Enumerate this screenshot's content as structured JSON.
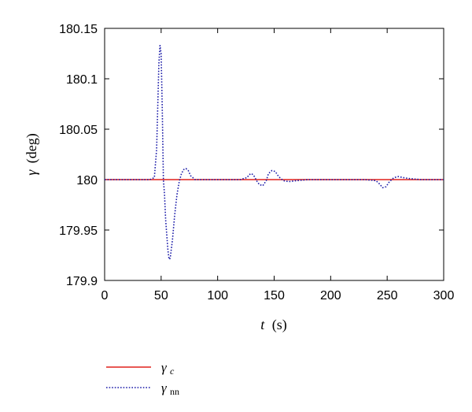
{
  "chart_data": {
    "type": "line",
    "title": "",
    "xlabel": "t (s)",
    "ylabel": "γ (deg)",
    "xlim": [
      0,
      300
    ],
    "ylim": [
      179.9,
      180.15
    ],
    "xticks": [
      0,
      50,
      100,
      150,
      200,
      250,
      300
    ],
    "yticks": [
      179.9,
      179.95,
      180,
      180.05,
      180.1,
      180.15
    ],
    "xtick_labels": [
      "0",
      "50",
      "100",
      "150",
      "200",
      "250",
      "300"
    ],
    "ytick_labels": [
      "179.9",
      "179.95",
      "180",
      "180.05",
      "180.1",
      "180.15"
    ],
    "grid": false,
    "legend_position": "below",
    "series": [
      {
        "name": "γc",
        "color": "#e0201b",
        "style": "solid",
        "x": [
          0,
          300
        ],
        "y": [
          180,
          180
        ]
      },
      {
        "name": "γnn",
        "color": "#1a1aa8",
        "style": "dotted",
        "x": [
          0,
          40,
          44,
          46,
          48,
          49,
          50,
          51,
          52,
          53,
          54,
          55,
          56,
          57,
          58,
          60,
          62,
          64,
          66,
          68,
          70,
          72,
          74,
          76,
          80,
          90,
          120,
          126,
          128,
          130,
          132,
          135,
          137,
          140,
          143,
          145,
          148,
          151,
          154,
          158,
          163,
          170,
          180,
          200,
          230,
          240,
          243,
          246,
          249,
          252,
          256,
          260,
          264,
          270,
          280,
          300
        ],
        "y": [
          180,
          180,
          180.002,
          180.03,
          180.115,
          180.133,
          180.125,
          180.07,
          180.0,
          179.985,
          179.96,
          179.945,
          179.93,
          179.921,
          179.922,
          179.94,
          179.965,
          179.985,
          179.998,
          180.006,
          180.01,
          180.011,
          180.009,
          180.004,
          180.0,
          180.0,
          180.0,
          180.002,
          180.005,
          180.006,
          180.004,
          179.998,
          179.995,
          179.994,
          179.999,
          180.006,
          180.009,
          180.008,
          180.003,
          179.999,
          179.998,
          179.999,
          180.0,
          180.0,
          180.0,
          179.999,
          179.996,
          179.992,
          179.993,
          179.998,
          180.002,
          180.003,
          180.002,
          180.001,
          180.0,
          180.0
        ]
      }
    ]
  },
  "legend": {
    "items": [
      {
        "label_main": "γ",
        "label_sub": "c"
      },
      {
        "label_main": "γ",
        "label_sub": "nn"
      }
    ]
  },
  "axis_labels": {
    "y_main": "γ",
    "y_unit": "(deg)",
    "x_main": "t",
    "x_unit": "(s)"
  }
}
